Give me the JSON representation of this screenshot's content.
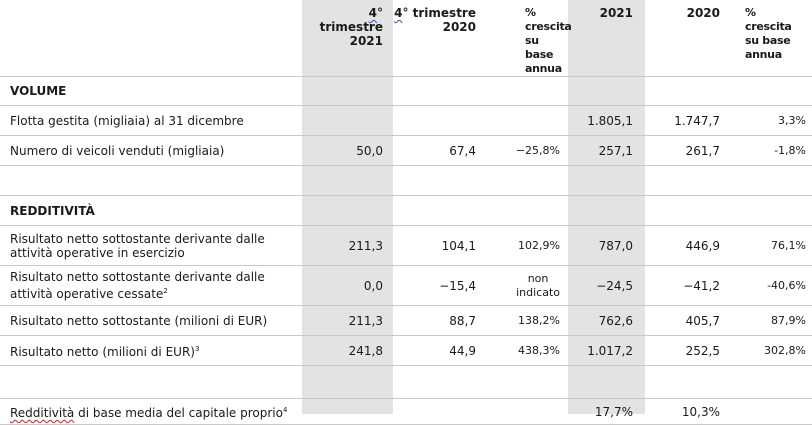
{
  "header": {
    "q4_2021_a": "4",
    "q4_2021_b": "° trimestre",
    "q4_2021_c": "2021",
    "q4_2020_a": "4",
    "q4_2020_b": "° trimestre",
    "q4_2020_c": "2020",
    "growth_1": [
      "%",
      "crescita",
      "su base",
      "annua"
    ],
    "y2021": "2021",
    "y2020": "2020",
    "growth_2": [
      "%",
      "crescita",
      "su base",
      "annua"
    ]
  },
  "sections": {
    "volume": "VOLUME",
    "redditivita": "REDDITIVITÀ"
  },
  "rows": {
    "flotta": {
      "label": "Flotta gestita (migliaia) al 31 dicembre",
      "q21": "",
      "q20": "",
      "g1": "",
      "y21": "1.805,1",
      "y20": "1.747,7",
      "g2": "3,3%"
    },
    "veicoli": {
      "label": "Numero di veicoli venduti (migliaia)",
      "q21": "50,0",
      "q20": "67,4",
      "g1": "−25,8%",
      "y21": "257,1",
      "y20": "261,7",
      "g2": "-1,8%"
    },
    "res_eserc": {
      "label": "Risultato netto sottostante derivante dalle attività operative in esercizio",
      "q21": "211,3",
      "q20": "104,1",
      "g1": "102,9%",
      "y21": "787,0",
      "y20": "446,9",
      "g2": "76,1%"
    },
    "res_cess": {
      "label": "Risultato netto sottostante derivante dalle attività operative cessate",
      "sup": "2",
      "q21": "0,0",
      "q20": "−15,4",
      "g1_a": "non",
      "g1_b": "indicato",
      "y21": "−24,5",
      "y20": "−41,2",
      "g2": "-40,6%"
    },
    "res_sott": {
      "label": "Risultato netto sottostante (milioni di EUR)",
      "q21": "211,3",
      "q20": "88,7",
      "g1": "138,2%",
      "y21": "762,6",
      "y20": "405,7",
      "g2": "87,9%"
    },
    "res_netto": {
      "label": "Risultato netto (milioni di EUR)",
      "sup": "3",
      "q21": "241,8",
      "q20": "44,9",
      "g1": "438,3%",
      "y21": "1.017,2",
      "y20": "252,5",
      "g2": "302,8%"
    },
    "redd_base": {
      "label_a": "Redditività",
      "label_b": " di base media del capitale proprio",
      "sup": "4",
      "q21": "",
      "q20": "",
      "g1": "",
      "y21": "17,7%",
      "y20": "10,3%",
      "g2": ""
    }
  }
}
